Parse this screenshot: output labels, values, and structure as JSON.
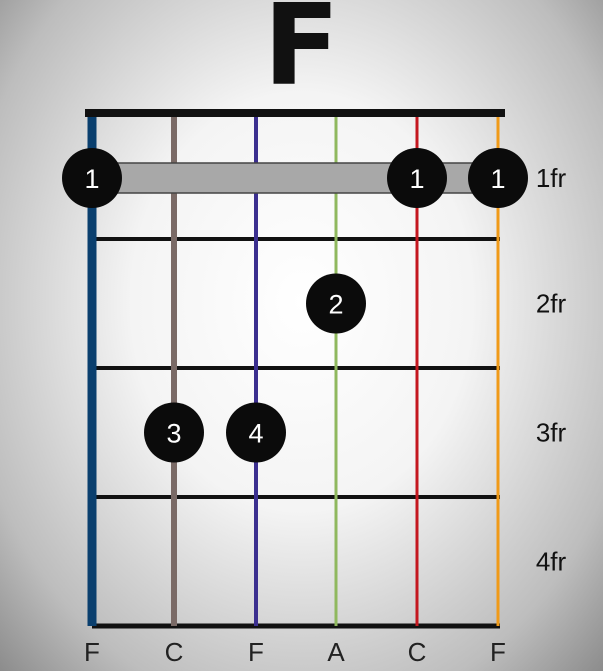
{
  "chord": {
    "name": "F",
    "strings": [
      {
        "note": "F",
        "color": "#0a3f6e"
      },
      {
        "note": "C",
        "color": "#7a6a66"
      },
      {
        "note": "F",
        "color": "#3b2f8f"
      },
      {
        "note": "A",
        "color": "#8fb85e"
      },
      {
        "note": "C",
        "color": "#c4171f"
      },
      {
        "note": "F",
        "color": "#f09a18"
      }
    ],
    "fret_labels": [
      "1fr",
      "2fr",
      "3fr",
      "4fr"
    ],
    "barre": {
      "fret": 1,
      "from_string": 1,
      "to_string": 6,
      "color": "#a8a8a8"
    },
    "fingers": [
      {
        "string": 1,
        "fret": 1,
        "label": "1"
      },
      {
        "string": 5,
        "fret": 1,
        "label": "1"
      },
      {
        "string": 6,
        "fret": 1,
        "label": "1"
      },
      {
        "string": 4,
        "fret": 2,
        "label": "2"
      },
      {
        "string": 2,
        "fret": 3,
        "label": "3"
      },
      {
        "string": 3,
        "fret": 3,
        "label": "4"
      }
    ]
  }
}
